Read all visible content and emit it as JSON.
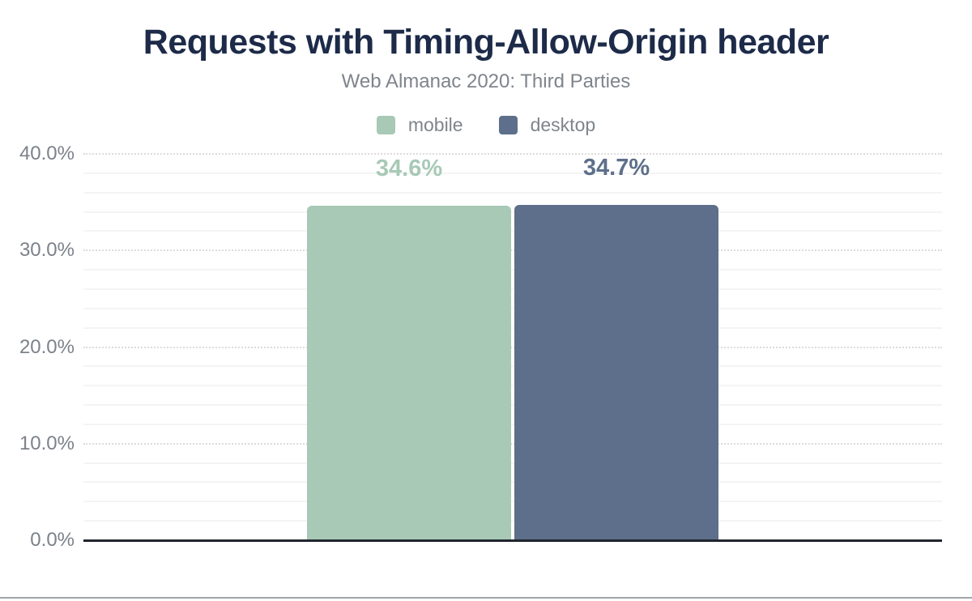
{
  "header": {
    "title": "Requests with Timing-Allow-Origin header",
    "subtitle": "Web Almanac 2020: Third Parties"
  },
  "colors": {
    "title_navy": "#1d2b49",
    "muted_gray_text": "#7f848c",
    "axis_line": "#21252e",
    "major_gridline": "#dcdcdc",
    "minor_gridline": "#f4f4f4",
    "mobile_green": "#a7c9b6",
    "desktop_slate": "#5d6f8a"
  },
  "chart_data": {
    "type": "bar",
    "title": "Requests with Timing-Allow-Origin header",
    "subtitle": "Web Almanac 2020: Third Parties",
    "categories": [
      "mobile",
      "desktop"
    ],
    "series": [
      {
        "name": "mobile",
        "value": 34.6,
        "label": "34.6%",
        "color": "#a7c9b6"
      },
      {
        "name": "desktop",
        "value": 34.7,
        "label": "34.7%",
        "color": "#5d6f8a"
      }
    ],
    "xlabel": "",
    "ylabel": "",
    "ylim": [
      0,
      40
    ],
    "yticks": [
      {
        "value": 0,
        "label": "0.0%"
      },
      {
        "value": 10,
        "label": "10.0%"
      },
      {
        "value": 20,
        "label": "20.0%"
      },
      {
        "value": 30,
        "label": "30.0%"
      },
      {
        "value": 40,
        "label": "40.0%"
      }
    ],
    "grid": {
      "major_step": 10,
      "minor_step": 2,
      "major_style": "dotted",
      "minor_style": "solid"
    },
    "legend_position": "top-center"
  }
}
